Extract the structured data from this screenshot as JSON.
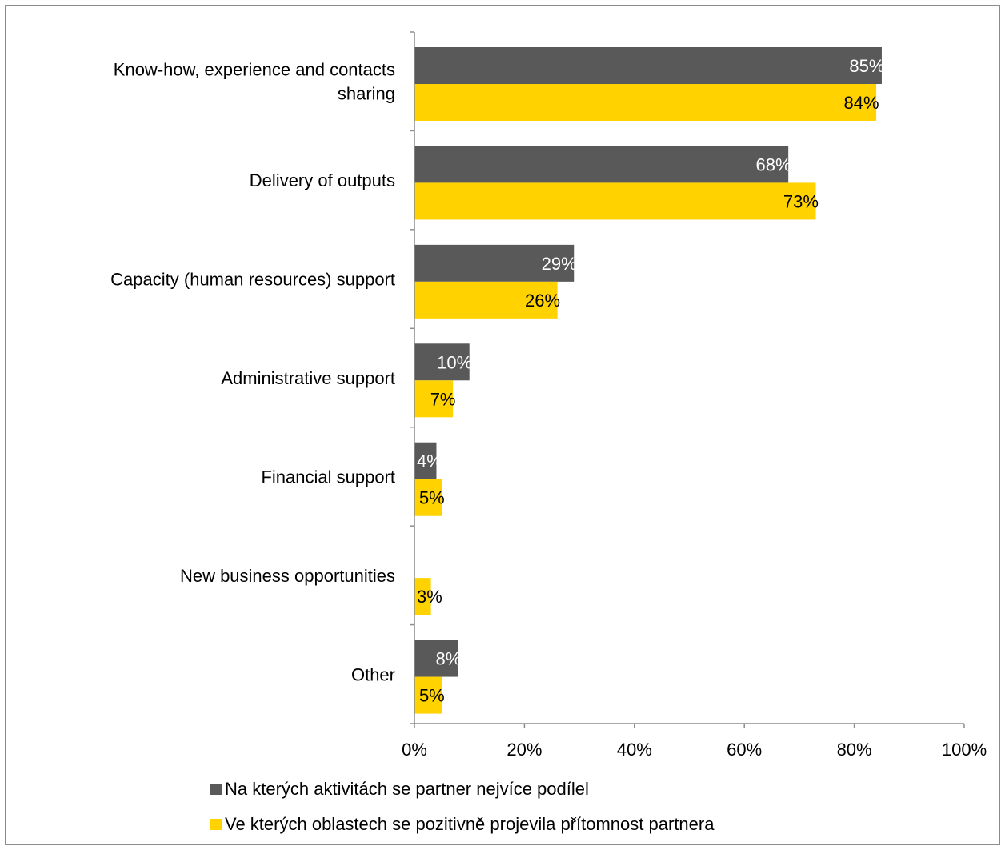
{
  "chart_data": {
    "type": "bar",
    "orientation": "horizontal",
    "categories": [
      "Know-how, experience and contacts sharing",
      "Delivery of outputs",
      "Capacity (human resources) support",
      "Administrative support",
      "Financial support",
      "New business opportunities",
      "Other"
    ],
    "series": [
      {
        "name": "Na kterých aktivitách se partner nejvíce podílel",
        "color": "#595959",
        "label_color": "#ffffff",
        "values": [
          85,
          68,
          29,
          10,
          4,
          null,
          8
        ],
        "labels": [
          "85%",
          "68%",
          "29%",
          "10%",
          "4%",
          "",
          "8%"
        ]
      },
      {
        "name": "Ve kterých oblastech se pozitivně projevila přítomnost partnera",
        "color": "#ffd200",
        "label_color": "#000000",
        "values": [
          84,
          73,
          26,
          7,
          5,
          3,
          5
        ],
        "labels": [
          "84%",
          "73%",
          "26%",
          "7%",
          "5%",
          "3%",
          "5%"
        ]
      }
    ],
    "xlim": [
      0,
      100
    ],
    "x_ticks": [
      "0%",
      "20%",
      "40%",
      "60%",
      "80%",
      "100%"
    ],
    "grid": false,
    "legend_position": "bottom"
  }
}
